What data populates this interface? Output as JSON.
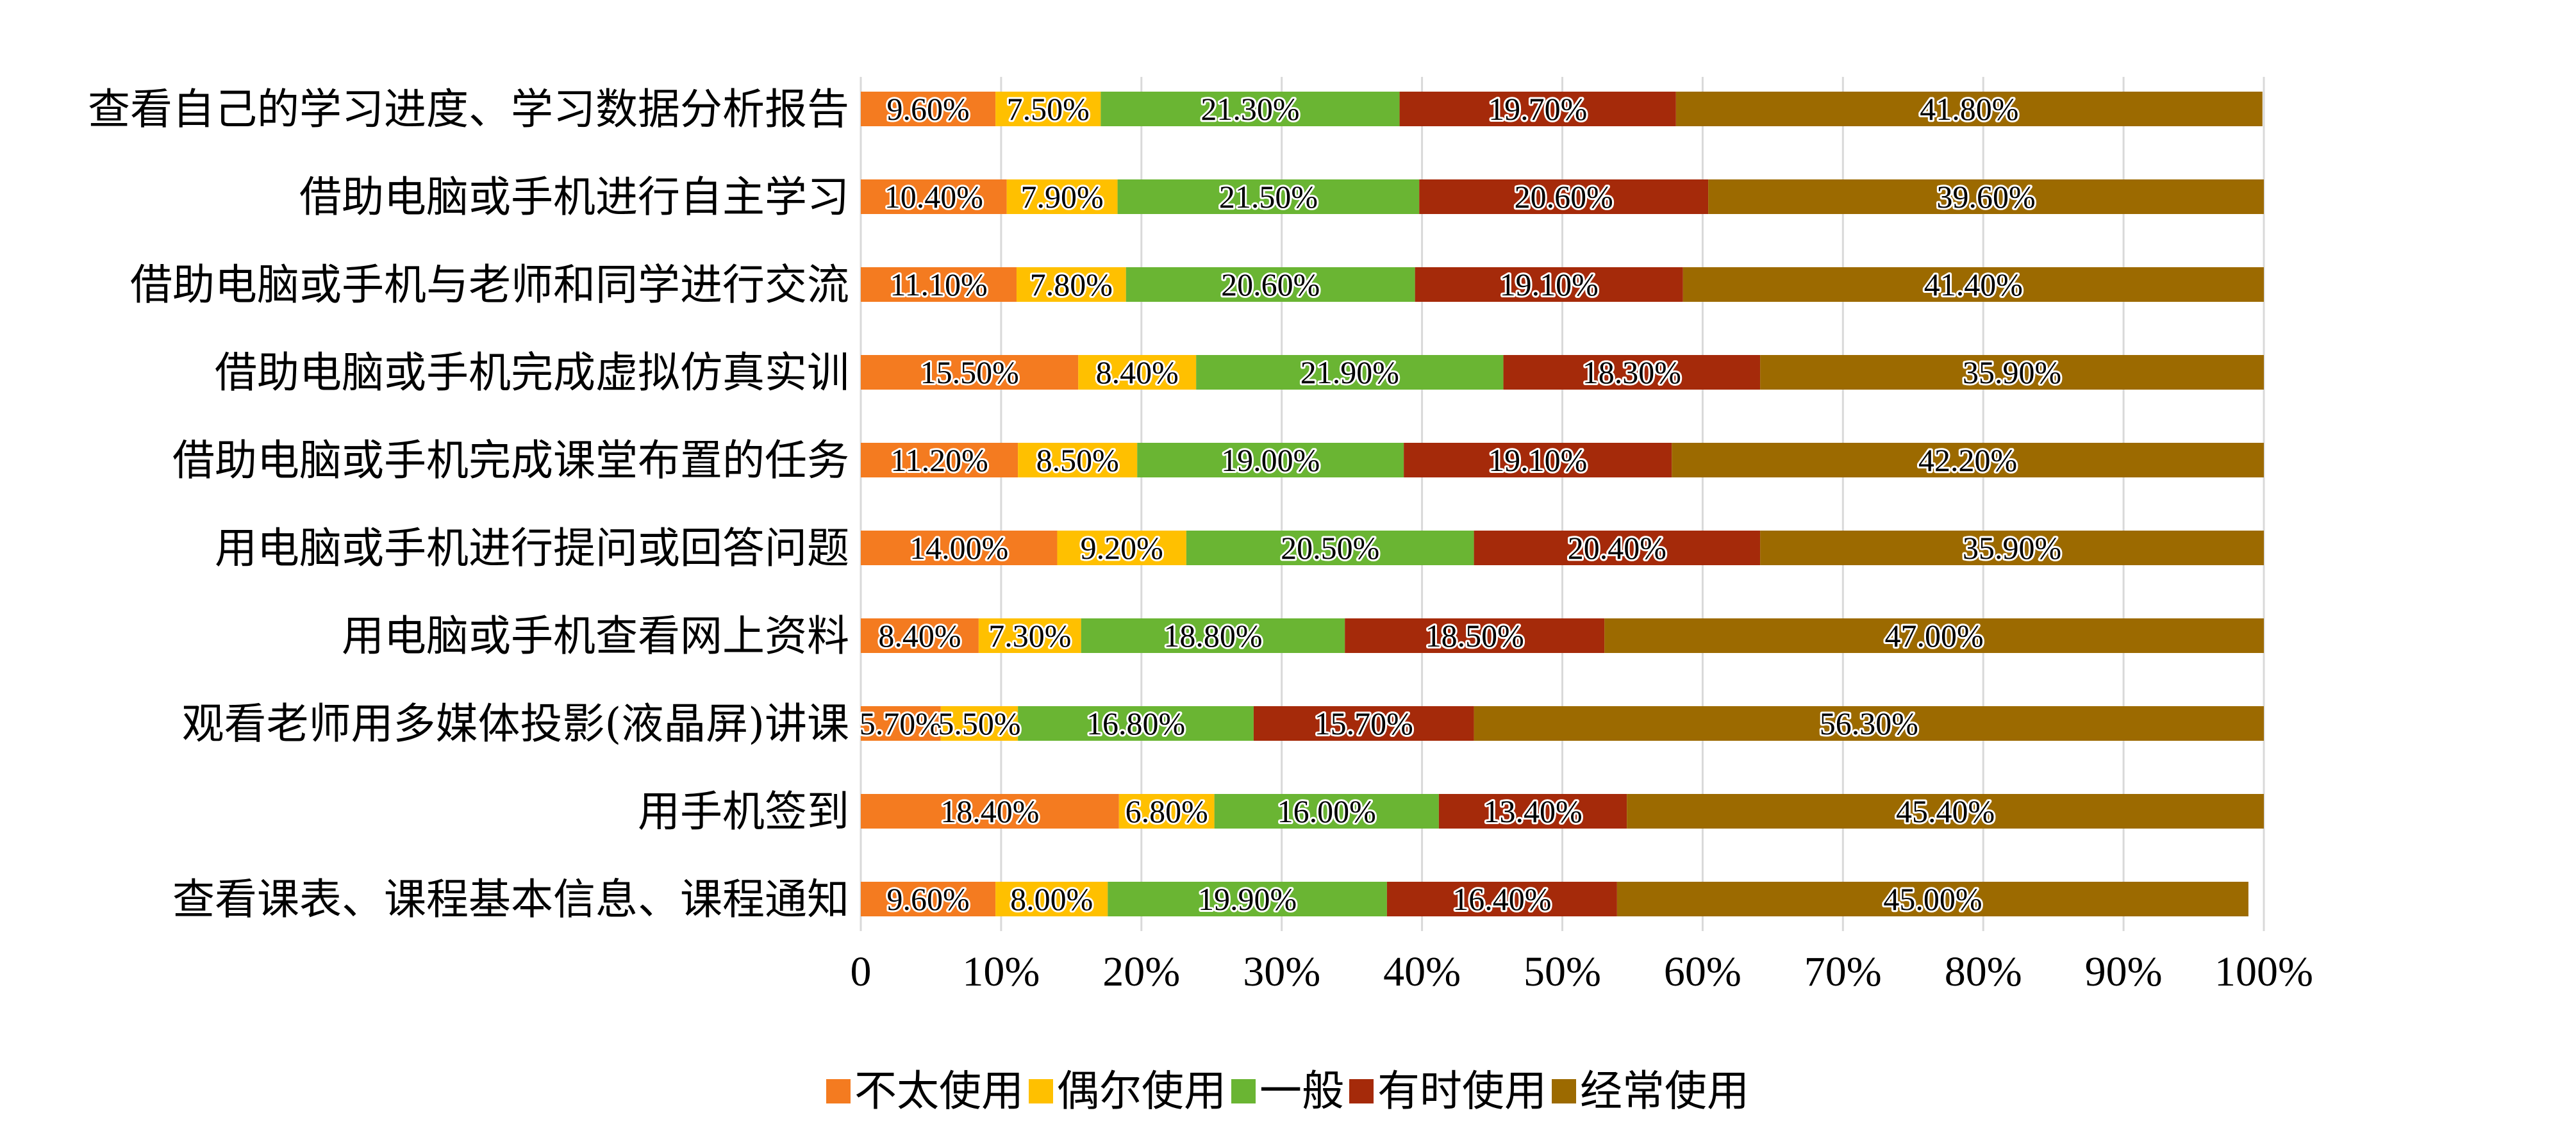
{
  "chart_data": {
    "type": "bar",
    "orientation": "horizontal",
    "stacked": "percent",
    "categories": [
      "查看自己的学习进度、学习数据分析报告",
      "借助电脑或手机进行自主学习",
      "借助电脑或手机与老师和同学进行交流",
      "借助电脑或手机完成虚拟仿真实训",
      "借助电脑或手机完成课堂布置的任务",
      "用电脑或手机进行提问或回答问题",
      "用电脑或手机查看网上资料",
      "观看老师用多媒体投影(液晶屏)讲课",
      "用手机签到",
      "查看课表、课程基本信息、课程通知"
    ],
    "series": [
      {
        "name": "不太使用",
        "color": "#F47B20",
        "values": [
          9.6,
          10.4,
          11.1,
          15.5,
          11.2,
          14.0,
          8.4,
          5.7,
          18.4,
          9.6
        ],
        "labels": [
          "9.60%",
          "10.40%",
          "11.10%",
          "15.50%",
          "11.20%",
          "14.00%",
          "8.40%",
          "5.70%",
          "18.40%",
          "9.60%"
        ]
      },
      {
        "name": "偶尔使用",
        "color": "#FFC000",
        "values": [
          7.5,
          7.9,
          7.8,
          8.4,
          8.5,
          9.2,
          7.3,
          5.5,
          6.8,
          8.0
        ],
        "labels": [
          "7.50%",
          "7.90%",
          "7.80%",
          "8.40%",
          "8.50%",
          "9.20%",
          "7.30%",
          "5.50%",
          "6.80%",
          "8.00%"
        ]
      },
      {
        "name": "一般",
        "color": "#6AB533",
        "values": [
          21.3,
          21.5,
          20.6,
          21.9,
          19.0,
          20.5,
          18.8,
          16.8,
          16.0,
          19.9
        ],
        "labels": [
          "21.30%",
          "21.50%",
          "20.60%",
          "21.90%",
          "19.00%",
          "20.50%",
          "18.80%",
          "16.80%",
          "16.00%",
          "19.90%"
        ]
      },
      {
        "name": "有时使用",
        "color": "#A52A0A",
        "values": [
          19.7,
          20.6,
          19.1,
          18.3,
          19.1,
          20.4,
          18.5,
          15.7,
          13.4,
          16.4
        ],
        "labels": [
          "19.70%",
          "20.60%",
          "19.10%",
          "18.30%",
          "19.10%",
          "20.40%",
          "18.50%",
          "15.70%",
          "13.40%",
          "16.40%"
        ]
      },
      {
        "name": "经常使用",
        "color": "#9C6A00",
        "values": [
          41.8,
          39.6,
          41.4,
          35.9,
          42.2,
          35.9,
          47.0,
          56.3,
          45.4,
          45.0
        ],
        "labels": [
          "41.80%",
          "39.60%",
          "41.40%",
          "35.90%",
          "42.20%",
          "35.90%",
          "47.00%",
          "56.30%",
          "45.40%",
          "45.00%"
        ]
      }
    ],
    "xticks": [
      "0",
      "10%",
      "20%",
      "30%",
      "40%",
      "50%",
      "60%",
      "70%",
      "80%",
      "90%",
      "100%"
    ],
    "xlim": [
      0,
      100
    ],
    "grid": true,
    "legend": "bottom"
  }
}
